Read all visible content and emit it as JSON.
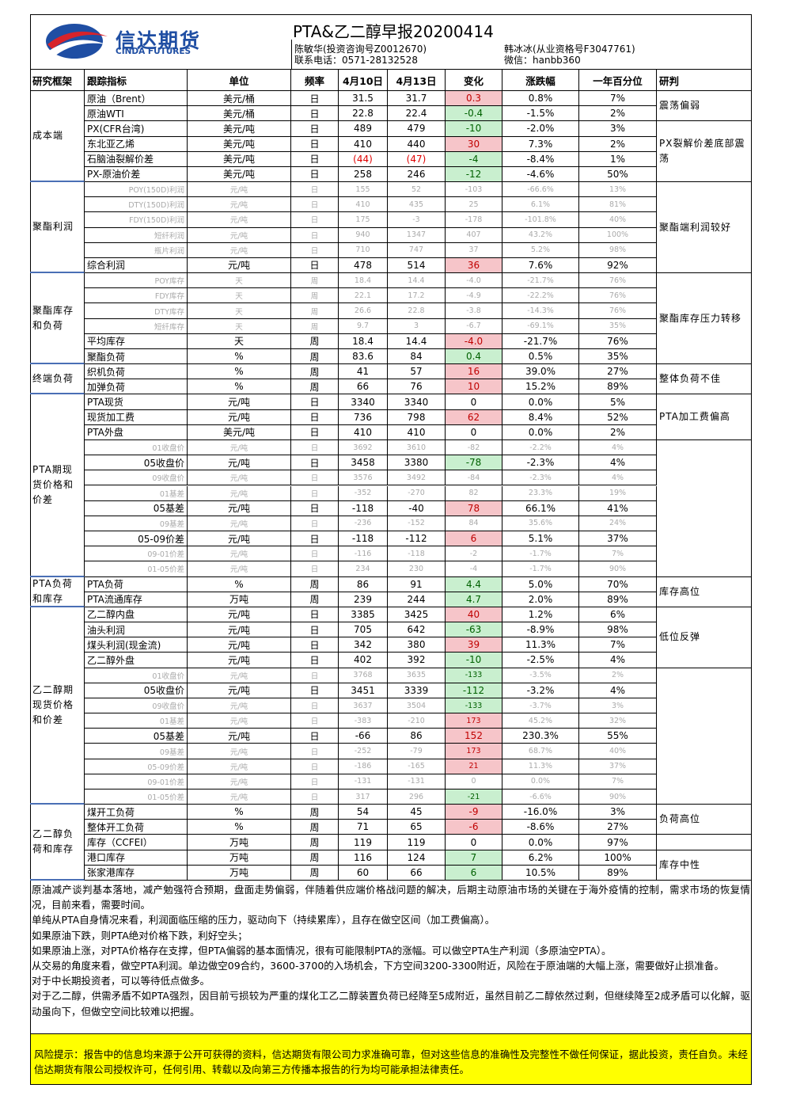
{
  "header": {
    "logo_cn": "信达期货",
    "logo_en": "CINDA FUTURES",
    "title": "PTA&乙二醇早报20200414",
    "authors": [
      "陈敏华(投资咨询号Z0012670)",
      "韩冰冰(从业资格号F3047761)",
      "联系电话：0571-28132528",
      "微信：hanbb360"
    ]
  },
  "table": {
    "columns": [
      "研究框架",
      "跟踪指标",
      "单位",
      "频率",
      "4月10日",
      "4月13日",
      "变化",
      "涨跌幅",
      "一年百分位",
      "研判"
    ],
    "sections": [
      {
        "label": "成本端",
        "rows": [
          [
            "原油（Brent）",
            "美元/桶",
            "日",
            "31.5",
            "31.7",
            "0.3",
            "0.8%",
            "7%"
          ],
          [
            "原油WTI",
            "美元/桶",
            "日",
            "22.8",
            "22.4",
            "-0.4",
            "-1.5%",
            "2%"
          ],
          [
            "PX(CFR台湾)",
            "美元/吨",
            "日",
            "489",
            "479",
            "-10",
            "-2.0%",
            "3%"
          ],
          [
            "东北亚乙烯",
            "美元/吨",
            "日",
            "410",
            "440",
            "30",
            "7.3%",
            "2%"
          ],
          [
            "石脑油裂解价差",
            "美元/吨",
            "日",
            "(44)",
            "(47)",
            "-4",
            "-8.4%",
            "1%"
          ],
          [
            "PX-原油价差",
            "美元/吨",
            "日",
            "258",
            "246",
            "-12",
            "-4.6%",
            "50%"
          ]
        ]
      },
      {
        "label": "聚酯利润",
        "rows": [
          [
            "POY(150D)利润",
            "元/吨",
            "日",
            "155",
            "52",
            "-103",
            "-66.6%",
            "13%"
          ],
          [
            "DTY(150D)利润",
            "元/吨",
            "日",
            "410",
            "435",
            "25",
            "6.1%",
            "81%"
          ],
          [
            "FDY(150D)利润",
            "元/吨",
            "日",
            "175",
            "-3",
            "-178",
            "-101.8%",
            "40%"
          ],
          [
            "短纤利润",
            "元/吨",
            "日",
            "940",
            "1347",
            "407",
            "43.2%",
            "100%"
          ],
          [
            "瓶片利润",
            "元/吨",
            "日",
            "710",
            "747",
            "37",
            "5.2%",
            "98%"
          ],
          [
            "综合利润",
            "元/吨",
            "日",
            "478",
            "514",
            "36",
            "7.6%",
            "92%"
          ]
        ]
      },
      {
        "label": "聚酯库存和负荷",
        "rows": [
          [
            "POY库存",
            "天",
            "周",
            "18.4",
            "14.4",
            "-4.0",
            "-21.7%",
            "76%"
          ],
          [
            "FDY库存",
            "天",
            "周",
            "22.1",
            "17.2",
            "-4.9",
            "-22.2%",
            "76%"
          ],
          [
            "DTY库存",
            "天",
            "周",
            "26.6",
            "22.8",
            "-3.8",
            "-14.3%",
            "76%"
          ],
          [
            "短纤库存",
            "天",
            "周",
            "9.7",
            "3",
            "-6.7",
            "-69.1%",
            "35%"
          ],
          [
            "平均库存",
            "天",
            "周",
            "18.4",
            "14.4",
            "-4.0",
            "-21.7%",
            "76%"
          ],
          [
            "聚酯负荷",
            "%",
            "周",
            "83.6",
            "84",
            "0.4",
            "0.5%",
            "35%"
          ]
        ]
      },
      {
        "label": "终端负荷",
        "rows": [
          [
            "织机负荷",
            "%",
            "周",
            "41",
            "57",
            "16",
            "39.0%",
            "27%"
          ],
          [
            "加弹负荷",
            "%",
            "周",
            "66",
            "76",
            "10",
            "15.2%",
            "89%"
          ]
        ]
      },
      {
        "label": "PTA期现货价格和价差",
        "rows": [
          [
            "PTA现货",
            "元/吨",
            "日",
            "3340",
            "3340",
            "0",
            "0.0%",
            "5%"
          ],
          [
            "现货加工费",
            "元/吨",
            "日",
            "736",
            "798",
            "62",
            "8.4%",
            "52%"
          ],
          [
            "PTA外盘",
            "美元/吨",
            "日",
            "410",
            "410",
            "0",
            "0.0%",
            "2%"
          ],
          [
            "01收盘价",
            "元/吨",
            "日",
            "3692",
            "3610",
            "-82",
            "-2.2%",
            "4%"
          ],
          [
            "05收盘价",
            "元/吨",
            "日",
            "3458",
            "3380",
            "-78",
            "-2.3%",
            "4%"
          ],
          [
            "09收盘价",
            "元/吨",
            "日",
            "3576",
            "3492",
            "-84",
            "-2.3%",
            "4%"
          ],
          [
            "01基差",
            "元/吨",
            "日",
            "-352",
            "-270",
            "82",
            "23.3%",
            "19%"
          ],
          [
            "05基差",
            "元/吨",
            "日",
            "-118",
            "-40",
            "78",
            "66.1%",
            "41%"
          ],
          [
            "09基差",
            "元/吨",
            "日",
            "-236",
            "-152",
            "84",
            "35.6%",
            "24%"
          ],
          [
            "05-09价差",
            "元/吨",
            "日",
            "-118",
            "-112",
            "6",
            "5.1%",
            "37%"
          ],
          [
            "09-01价差",
            "元/吨",
            "日",
            "-116",
            "-118",
            "-2",
            "-1.7%",
            "7%"
          ],
          [
            "01-05价差",
            "元/吨",
            "日",
            "234",
            "230",
            "-4",
            "-1.7%",
            "90%"
          ]
        ]
      },
      {
        "label": "PTA负荷和库存",
        "rows": [
          [
            "PTA负荷",
            "%",
            "周",
            "86",
            "91",
            "4.4",
            "5.0%",
            "70%"
          ],
          [
            "PTA流通库存",
            "万吨",
            "周",
            "239",
            "244",
            "4.7",
            "2.0%",
            "89%"
          ]
        ]
      },
      {
        "label": "乙二醇期现货价格和价差",
        "rows": [
          [
            "乙二醇内盘",
            "元/吨",
            "日",
            "3385",
            "3425",
            "40",
            "1.2%",
            "6%"
          ],
          [
            "油头利润",
            "元/吨",
            "日",
            "705",
            "642",
            "-63",
            "-8.9%",
            "98%"
          ],
          [
            "煤头利润(现金流)",
            "元/吨",
            "日",
            "342",
            "380",
            "39",
            "11.3%",
            "7%"
          ],
          [
            "乙二醇外盘",
            "元/吨",
            "日",
            "402",
            "392",
            "-10",
            "-2.5%",
            "4%"
          ],
          [
            "01收盘价",
            "元/吨",
            "日",
            "3768",
            "3635",
            "-133",
            "-3.5%",
            "2%"
          ],
          [
            "05收盘价",
            "元/吨",
            "日",
            "3451",
            "3339",
            "-112",
            "-3.2%",
            "4%"
          ],
          [
            "09收盘价",
            "元/吨",
            "日",
            "3637",
            "3504",
            "-133",
            "-3.7%",
            "3%"
          ],
          [
            "01基差",
            "元/吨",
            "日",
            "-383",
            "-210",
            "173",
            "45.2%",
            "32%"
          ],
          [
            "05基差",
            "元/吨",
            "日",
            "-66",
            "86",
            "152",
            "230.3%",
            "55%"
          ],
          [
            "09基差",
            "元/吨",
            "日",
            "-252",
            "-79",
            "173",
            "68.7%",
            "40%"
          ],
          [
            "05-09价差",
            "元/吨",
            "日",
            "-186",
            "-165",
            "21",
            "11.3%",
            "37%"
          ],
          [
            "09-01价差",
            "元/吨",
            "日",
            "-131",
            "-131",
            "0",
            "0.0%",
            "7%"
          ],
          [
            "01-05价差",
            "元/吨",
            "日",
            "317",
            "296",
            "-21",
            "-6.6%",
            "90%"
          ]
        ]
      },
      {
        "label": "乙二醇负荷和库存",
        "rows": [
          [
            "煤开工负荷",
            "%",
            "周",
            "54",
            "45",
            "-9",
            "-16.0%",
            "3%"
          ],
          [
            "整体开工负荷",
            "%",
            "周",
            "71",
            "65",
            "-6",
            "-8.6%",
            "27%"
          ],
          [
            "库存（CCFEI）",
            "万吨",
            "周",
            "119",
            "119",
            "0",
            "0.0%",
            "97%"
          ],
          [
            "港口库存",
            "万吨",
            "周",
            "116",
            "124",
            "7",
            "6.2%",
            "100%"
          ],
          [
            "张家港库存",
            "万吨",
            "周",
            "60",
            "66",
            "6",
            "10.5%",
            "89%"
          ]
        ]
      }
    ],
    "judgments": [
      "震荡偏弱",
      "PX裂解价差底部震荡",
      "聚酯端利润较好",
      "聚酯库存压力转移",
      "整体负荷不佳",
      "PTA加工费偏高",
      "库存高位",
      "低位反弹",
      "负荷高位",
      "库存中性"
    ]
  },
  "analysis": {
    "paragraphs": [
      "原油减产谈判基本落地，减产勉强符合预期，盘面走势偏弱，伴随着供应端价格战问题的解决，后期主动原油市场的关键在于海外疫情的控制，需求市场的恢复情况，目前来看，需要时间。",
      "单纯从PTA自身情况来看，利润面临压缩的压力，驱动向下（持续累库），且存在做空区间（加工费偏高）。",
      "如果原油下跌，则PTA绝对价格下跌，利好空头；",
      "如果原油上涨，对PTA价格存在支撑，但PTA偏弱的基本面情况，很有可能限制PTA的涨幅。可以做空PTA生产利润（多原油空PTA）。",
      "从交易的角度来看，做空PTA利润。单边做空09合约，3600-3700的入场机会，下方空间3200-3300附近，风险在于原油端的大幅上涨，需要做好止损准备。",
      "对于中长期投资者，可以等待低点做多。",
      "对于乙二醇，供需矛盾不如PTA强烈，因目前亏损较为严重的煤化工乙二醇装置负荷已经降至5成附近，虽然目前乙二醇依然过剩，但继续降至2成矛盾可以化解，驱动虽向下，但做空空间比较难以把握。"
    ],
    "risk": "风险提示：报告中的信息均来源于公开可获得的资料，信达期货有限公司力求准确可靠，但对这些信息的准确性及完整性不做任何保证，据此投资，责任自负。未经信达期货有限公司授权许可，任何引用、转载以及向第三方传播本报告的行为均可能承担法律责任。"
  }
}
